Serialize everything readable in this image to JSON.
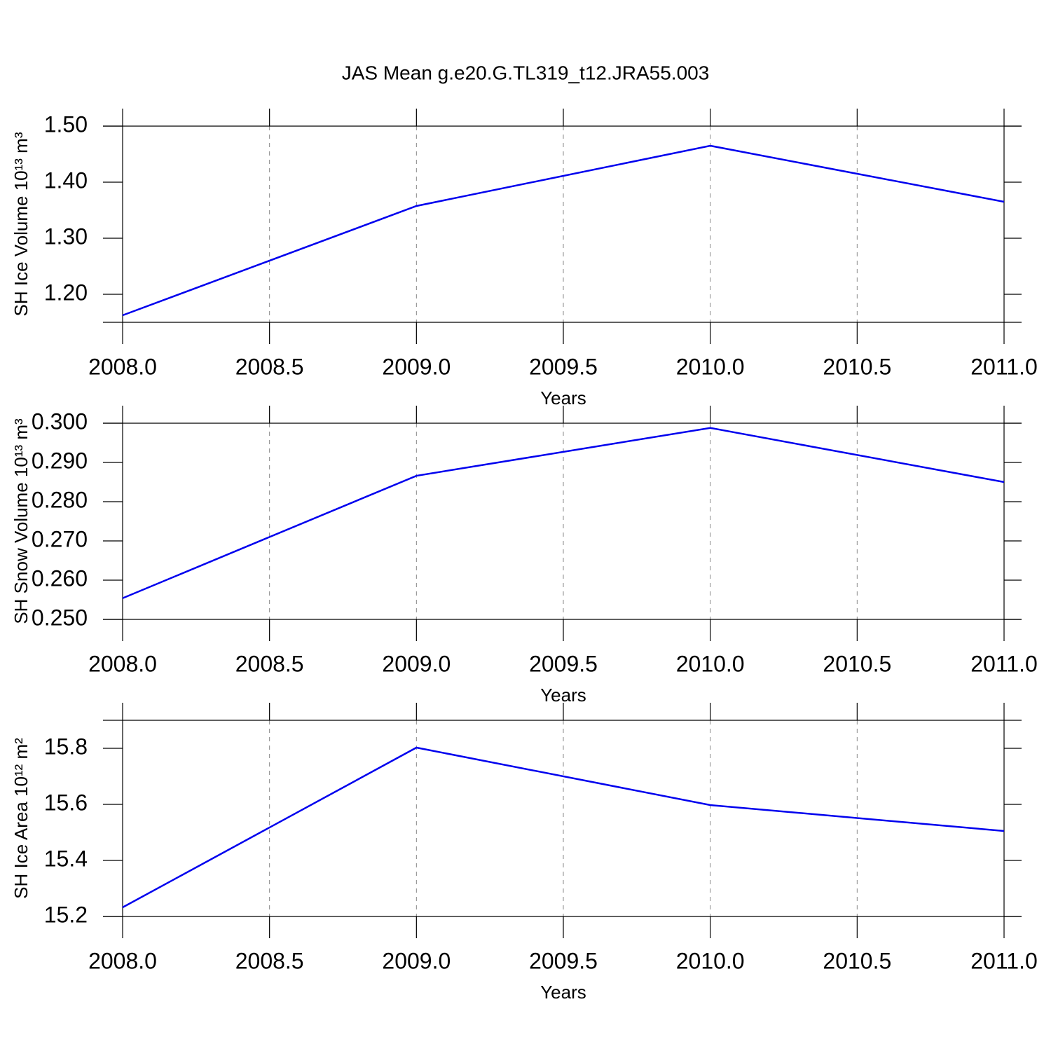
{
  "chart_data": [
    {
      "type": "line",
      "title": "JAS Mean g.e20.G.TL319_t12.JRA55.003",
      "x_label": "Years",
      "y_label": "SH Ice Volume 10¹³ m³",
      "x": [
        2008,
        2009,
        2010,
        2011
      ],
      "series": [
        {
          "color": "#0000ee",
          "values": [
            1.1625,
            1.3575,
            1.465,
            1.365
          ]
        }
      ],
      "xlim": [
        2008,
        2011
      ],
      "xticks": [
        {
          "value": 2008,
          "label": "2008.0"
        },
        2008.5,
        {
          "value": 2009,
          "label": "2009.0"
        },
        2009.5,
        {
          "value": 2010,
          "label": "2010.0"
        },
        2010.5,
        {
          "value": 2011,
          "label": "2011.0"
        }
      ],
      "ylim": [
        1.15,
        1.5
      ],
      "yticks": [
        {
          "value": 1.2,
          "label": "1.20"
        },
        {
          "value": 1.3,
          "label": "1.30"
        },
        {
          "value": 1.4,
          "label": "1.40"
        },
        {
          "value": 1.5,
          "label": "1.50"
        }
      ],
      "grid": "x"
    },
    {
      "type": "line",
      "x_label": "Years",
      "y_label": "SH Snow Volume 10¹³ m³",
      "x": [
        2008,
        2009,
        2010,
        2011
      ],
      "series": [
        {
          "color": "#0000ee",
          "values": [
            0.2554,
            0.2866,
            0.2988,
            0.285
          ]
        }
      ],
      "xlim": [
        2008,
        2011
      ],
      "xticks": [
        {
          "value": 2008,
          "label": "2008.0"
        },
        2008.5,
        {
          "value": 2009,
          "label": "2009.0"
        },
        2009.5,
        {
          "value": 2010,
          "label": "2010.0"
        },
        2010.5,
        {
          "value": 2011,
          "label": "2011.0"
        }
      ],
      "ylim": [
        0.25,
        0.3
      ],
      "yticks": [
        {
          "value": 0.25,
          "label": "0.250"
        },
        {
          "value": 0.26,
          "label": "0.260"
        },
        {
          "value": 0.27,
          "label": "0.270"
        },
        {
          "value": 0.28,
          "label": "0.280"
        },
        {
          "value": 0.29,
          "label": "0.290"
        },
        {
          "value": 0.3,
          "label": "0.300"
        }
      ],
      "grid": "x"
    },
    {
      "type": "line",
      "x_label": "Years",
      "y_label": "SH Ice Area 10¹² m²",
      "x": [
        2008,
        2009,
        2010,
        2011
      ],
      "series": [
        {
          "color": "#0000ee",
          "values": [
            15.2325,
            15.8025,
            15.5975,
            15.505
          ]
        }
      ],
      "xlim": [
        2008,
        2011
      ],
      "xticks": [
        {
          "value": 2008,
          "label": "2008.0"
        },
        2008.5,
        {
          "value": 2009,
          "label": "2009.0"
        },
        2009.5,
        {
          "value": 2010,
          "label": "2010.0"
        },
        2010.5,
        {
          "value": 2011,
          "label": "2011.0"
        }
      ],
      "ylim": [
        15.2,
        15.9
      ],
      "yticks": [
        15.2,
        15.4,
        15.6,
        15.8
      ],
      "grid": "x"
    }
  ]
}
